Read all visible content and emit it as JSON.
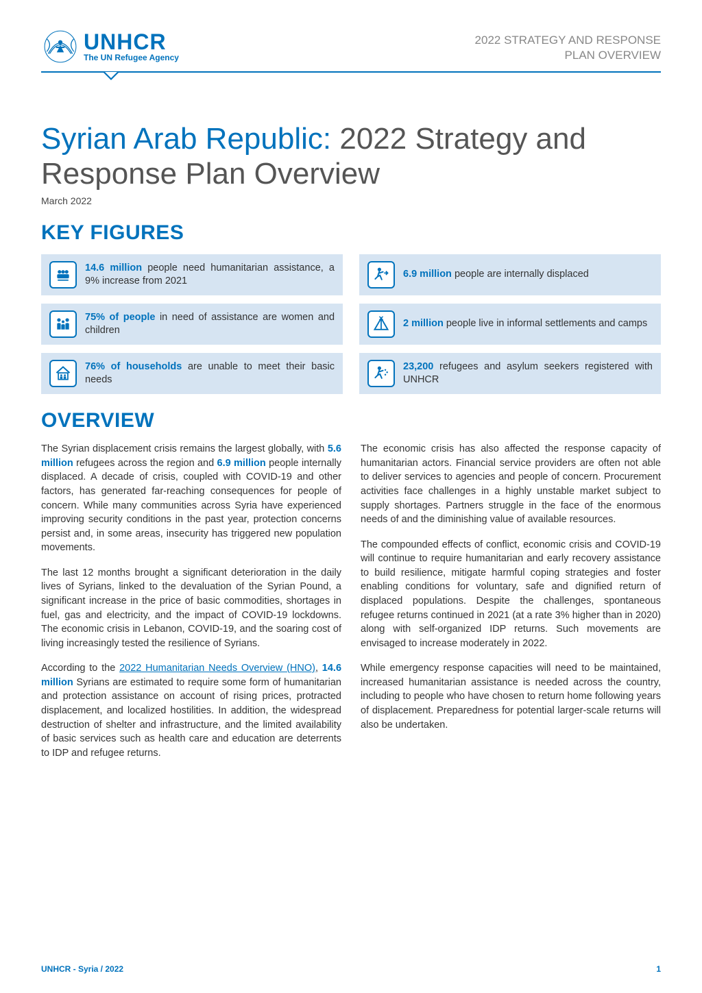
{
  "colors": {
    "brand": "#0072bc",
    "figure_bg": "#d6e4f2",
    "text": "#333333",
    "header_gray": "#888888"
  },
  "header": {
    "logo_main": "UNHCR",
    "logo_sub": "The UN Refugee Agency",
    "right_line1": "2022 STRATEGY AND RESPONSE",
    "right_line2": "PLAN OVERVIEW"
  },
  "title": {
    "country": "Syrian Arab Republic:",
    "rest": " 2022 Strategy and Response Plan Overview",
    "date": "March 2022"
  },
  "sections": {
    "key_figures": "KEY FIGURES",
    "overview": "OVERVIEW"
  },
  "figures": [
    {
      "icon": "people-group",
      "bold": "14.6 million",
      "text_after": " people need humanitarian assistance, a 9% increase from 2021"
    },
    {
      "icon": "running-arrow",
      "bold": "6.9 million",
      "text_after": " people are internally displaced"
    },
    {
      "icon": "family",
      "bold": "75% of people",
      "text_after": " in need of assistance are women and children"
    },
    {
      "icon": "tent",
      "bold": "2 million",
      "text_after": " people live in informal settlements and camps"
    },
    {
      "icon": "house-people",
      "bold": "76% of households",
      "text_after": " are unable to meet their basic needs"
    },
    {
      "icon": "running-dots",
      "bold": "23,200",
      "text_after": " refugees and asylum seekers registered with UNHCR"
    }
  ],
  "overview": {
    "left": [
      {
        "pre": "The Syrian displacement crisis remains the largest globally, with ",
        "hl1": "5.6 million",
        "mid": " refugees across the region and ",
        "hl2": "6.9 million",
        "post": " people internally displaced. A decade of crisis, coupled with COVID-19 and other factors, has generated far-reaching consequences for people of concern. While many communities across Syria have experienced improving security conditions in the past year, protection concerns persist and, in some areas, insecurity has triggered new population movements."
      },
      {
        "text": "The last 12 months brought a significant deterioration in the daily lives of Syrians, linked to the devaluation of the Syrian Pound, a significant increase in the price of basic commodities, shortages in fuel, gas and electricity, and the impact of COVID-19 lockdowns. The economic crisis in Lebanon, COVID-19, and the soaring cost of living increasingly tested the resilience of Syrians."
      },
      {
        "pre": "According to the ",
        "link": "2022 Humanitarian Needs Overview (HNO)",
        "mid2": ", ",
        "hl1": "14.6 million",
        "post": " Syrians are estimated to require some form of humanitarian and protection assistance on account of rising prices, protracted displacement, and localized hostilities. In addition, the widespread destruction of shelter and infrastructure, and the limited availability of basic services such as health care and education are deterrents to IDP and refugee returns."
      }
    ],
    "right": [
      {
        "text": "The economic crisis has also affected the response capacity of humanitarian actors. Financial service providers are often not able to deliver services to agencies and people of concern. Procurement activities face challenges in a highly unstable market subject to supply shortages. Partners struggle in the face of the enormous needs of and the diminishing value of available resources."
      },
      {
        "text": "The compounded effects of conflict, economic crisis and COVID-19 will continue to require humanitarian and early recovery assistance to build resilience, mitigate harmful coping strategies and foster enabling conditions for voluntary, safe and dignified return of displaced populations. Despite the challenges, spontaneous refugee returns continued in 2021 (at a rate 3% higher than in 2020) along with self-organized IDP returns. Such movements are envisaged to increase moderately in 2022."
      },
      {
        "text": "While emergency response capacities will need to be maintained, increased humanitarian assistance is needed across the country, including to people who have chosen to return home following years of displacement. Preparedness for potential larger-scale returns will also be undertaken."
      }
    ]
  },
  "footer": {
    "left": "UNHCR - Syria / 2022",
    "page": "1"
  }
}
